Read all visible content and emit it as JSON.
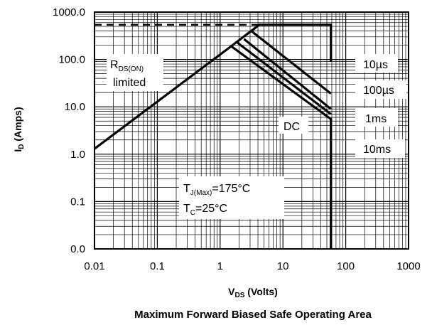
{
  "chart_data": {
    "type": "line",
    "title": "Maximum Forward Biased Safe Operating Area",
    "xlabel": {
      "main": "V",
      "sub": "DS",
      "rest": " (Volts)"
    },
    "ylabel": {
      "main": "I",
      "sub": "D",
      "rest": " (Amps)"
    },
    "x_scale": "log",
    "y_scale": "log",
    "xlim": [
      0.01,
      1000
    ],
    "ylim": [
      0.01,
      1000
    ],
    "grid": true,
    "x_ticks": [
      {
        "value": 0.01,
        "label": "0.01"
      },
      {
        "value": 0.1,
        "label": "0.1"
      },
      {
        "value": 1,
        "label": "1"
      },
      {
        "value": 10,
        "label": "10"
      },
      {
        "value": 100,
        "label": "100"
      },
      {
        "value": 1000,
        "label": "1000"
      }
    ],
    "y_ticks": [
      {
        "value": 0.01,
        "label": "0.0"
      },
      {
        "value": 0.1,
        "label": "0.1"
      },
      {
        "value": 1,
        "label": "1.0"
      },
      {
        "value": 10,
        "label": "10.0"
      },
      {
        "value": 100,
        "label": "100.0"
      },
      {
        "value": 1000,
        "label": "1000.0"
      }
    ],
    "series": [
      {
        "name": "10µs",
        "points": [
          [
            0.01,
            1.3
          ],
          [
            1.5,
            190
          ],
          [
            4.2,
            540
          ],
          [
            58,
            540
          ],
          [
            58,
            90
          ]
        ]
      },
      {
        "name": "100µs",
        "points": [
          [
            3.2,
            390
          ],
          [
            58,
            19
          ]
        ]
      },
      {
        "name": "1ms",
        "points": [
          [
            2.4,
            270
          ],
          [
            58,
            9
          ]
        ]
      },
      {
        "name": "10ms",
        "points": [
          [
            1.9,
            225
          ],
          [
            58,
            7
          ]
        ]
      },
      {
        "name": "DC",
        "points": [
          [
            1.5,
            190
          ],
          [
            58,
            5.5
          ],
          [
            58,
            0.01
          ]
        ]
      }
    ],
    "limit_line": {
      "y": 540,
      "x_range": [
        0.01,
        4.2
      ],
      "style": "dashed"
    },
    "annotations": {
      "rds": {
        "main": "R",
        "sub": "DS(ON)",
        "line2": "limited"
      },
      "legend_labels": [
        "10µs",
        "100µs",
        "1ms",
        "10ms"
      ],
      "dc": "DC",
      "tj": {
        "main": "T",
        "sub": "J(Max)",
        "rest": "=175°C"
      },
      "tc": {
        "main": "T",
        "sub": "C",
        "rest": "=25°C"
      }
    }
  }
}
